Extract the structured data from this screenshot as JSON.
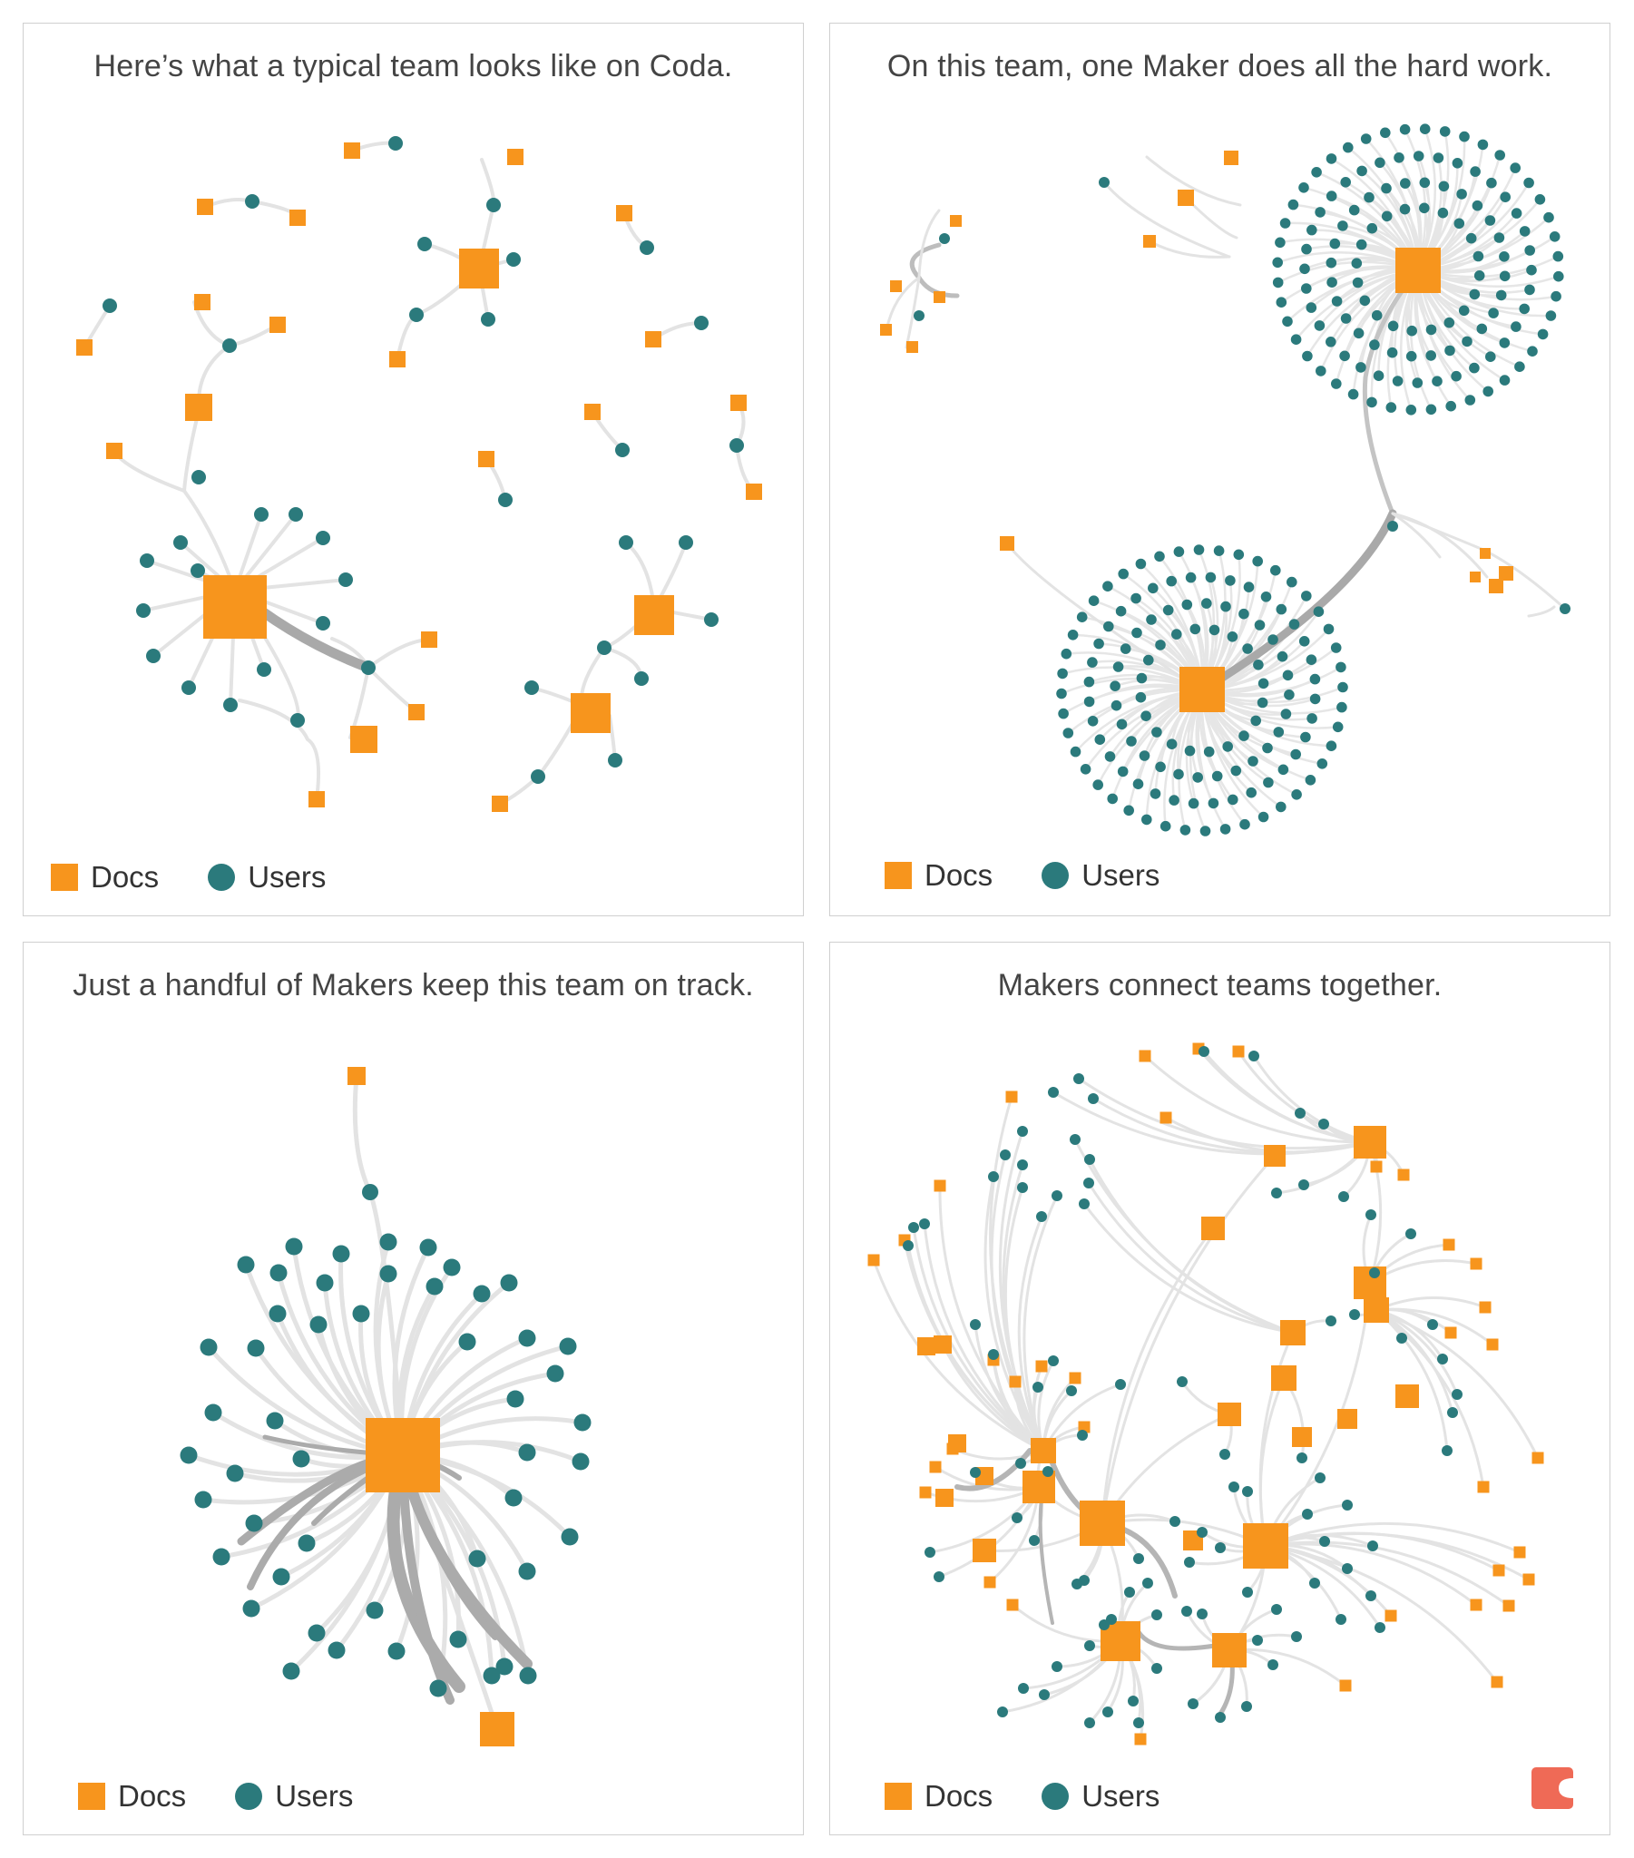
{
  "colors": {
    "doc": "#f7951d",
    "user": "#2b7a7c",
    "edge": "#e3e3e3",
    "edge_strong": "#a9a9a9",
    "logo": "#ef6a56"
  },
  "legend": {
    "docs_label": "Docs",
    "users_label": "Users"
  },
  "panels": [
    {
      "title": "Here’s what a typical team looks like on Coda."
    },
    {
      "title": "On this team, one Maker does all the hard work."
    },
    {
      "title": "Just a handful of Makers keep this team on track."
    },
    {
      "title": "Makers connect teams together."
    }
  ],
  "logo": {
    "icon": "coda-logo-icon"
  }
}
